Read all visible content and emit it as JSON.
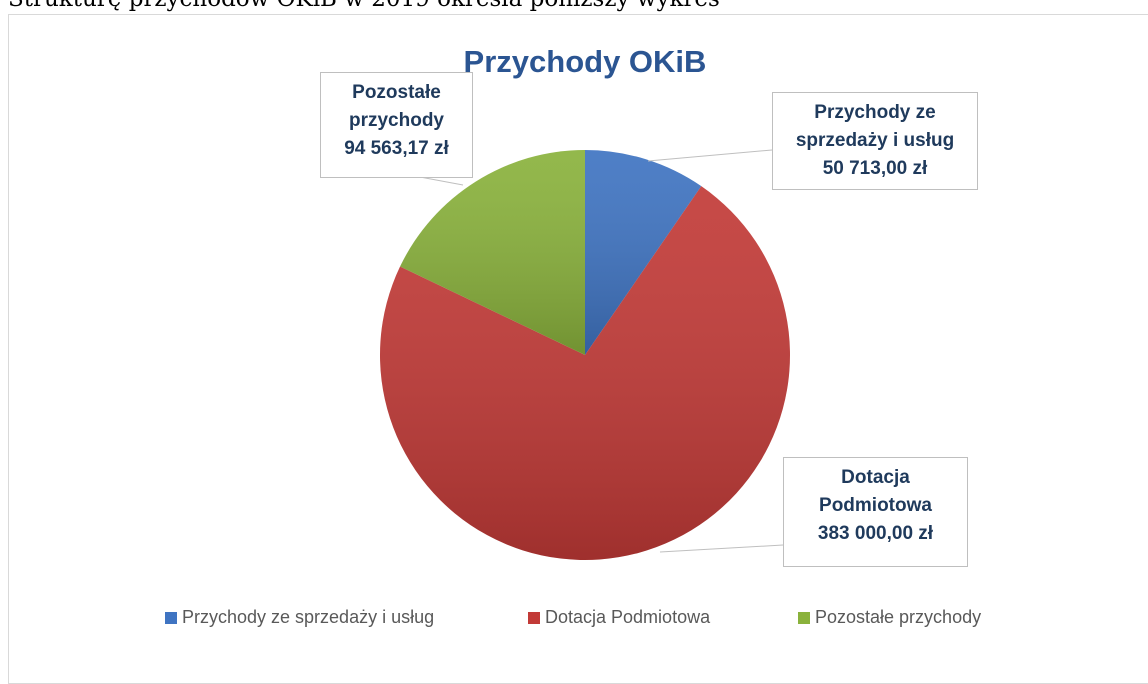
{
  "intro_text": "Strukturę przychodów OKiB w 2019 określa poniższy wykres",
  "chart_data": {
    "type": "pie",
    "title": "Przychody OKiB",
    "categories": [
      "Przychody ze sprzedaży i usług",
      "Dotacja Podmiotowa",
      "Pozostałe przychody"
    ],
    "values": [
      50713,
      383000,
      94563.17
    ],
    "value_labels": [
      "50 713,00 zł",
      "383 000,00 zł",
      "94 563,17 zł"
    ],
    "colors": [
      "#3f74c2",
      "#c23a37",
      "#8ab23c"
    ],
    "legend": "bottom"
  }
}
